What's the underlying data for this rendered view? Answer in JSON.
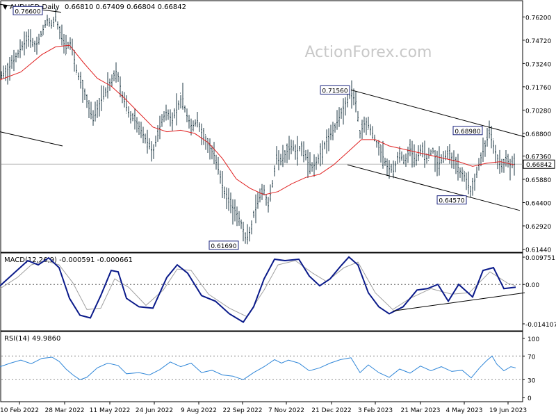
{
  "header": {
    "symbol": "AUDUSD,Daily",
    "ohlc": "0.66810 0.67409 0.66804 0.66842",
    "watermark": "ActionForex.com"
  },
  "chart_data": [
    {
      "type": "candlestick",
      "name": "AUDUSD,Daily",
      "y_ticks": [
        "0.76200",
        "0.74720",
        "0.73240",
        "0.71760",
        "0.70280",
        "0.68800",
        "0.67360",
        "0.65880",
        "0.64400",
        "0.62920",
        "0.61440"
      ],
      "ylim": [
        0.6133,
        0.771
      ],
      "last_price": "0.66842",
      "ma_color": "#e02020",
      "price_color": "#1f3a44",
      "trendline_color": "#000000",
      "price_path": [
        [
          0,
          0.724
        ],
        [
          10,
          0.728
        ],
        [
          22,
          0.736
        ],
        [
          30,
          0.742
        ],
        [
          40,
          0.748
        ],
        [
          52,
          0.744
        ],
        [
          60,
          0.752
        ],
        [
          68,
          0.76
        ],
        [
          75,
          0.756
        ],
        [
          80,
          0.762
        ],
        [
          88,
          0.749
        ],
        [
          95,
          0.742
        ],
        [
          102,
          0.746
        ],
        [
          110,
          0.728
        ],
        [
          118,
          0.718
        ],
        [
          128,
          0.704
        ],
        [
          134,
          0.696
        ],
        [
          142,
          0.706
        ],
        [
          152,
          0.714
        ],
        [
          160,
          0.722
        ],
        [
          168,
          0.728
        ],
        [
          176,
          0.712
        ],
        [
          184,
          0.702
        ],
        [
          190,
          0.698
        ],
        [
          198,
          0.694
        ],
        [
          205,
          0.688
        ],
        [
          212,
          0.682
        ],
        [
          220,
          0.676
        ],
        [
          226,
          0.685
        ],
        [
          232,
          0.696
        ],
        [
          240,
          0.702
        ],
        [
          248,
          0.696
        ],
        [
          255,
          0.704
        ],
        [
          262,
          0.712
        ],
        [
          268,
          0.7
        ],
        [
          276,
          0.692
        ],
        [
          284,
          0.696
        ],
        [
          292,
          0.686
        ],
        [
          300,
          0.68
        ],
        [
          308,
          0.674
        ],
        [
          316,
          0.662
        ],
        [
          324,
          0.648
        ],
        [
          332,
          0.642
        ],
        [
          340,
          0.638
        ],
        [
          348,
          0.63
        ],
        [
          354,
          0.62
        ],
        [
          360,
          0.626
        ],
        [
          366,
          0.638
        ],
        [
          372,
          0.646
        ],
        [
          380,
          0.652
        ],
        [
          386,
          0.642
        ],
        [
          392,
          0.656
        ],
        [
          398,
          0.672
        ],
        [
          404,
          0.67
        ],
        [
          412,
          0.676
        ],
        [
          420,
          0.68
        ],
        [
          426,
          0.676
        ],
        [
          434,
          0.68
        ],
        [
          442,
          0.67
        ],
        [
          450,
          0.666
        ],
        [
          458,
          0.672
        ],
        [
          466,
          0.68
        ],
        [
          474,
          0.686
        ],
        [
          482,
          0.692
        ],
        [
          490,
          0.7
        ],
        [
          498,
          0.708
        ],
        [
          505,
          0.714
        ],
        [
          512,
          0.708
        ],
        [
          518,
          0.688
        ],
        [
          526,
          0.696
        ],
        [
          534,
          0.69
        ],
        [
          542,
          0.682
        ],
        [
          550,
          0.674
        ],
        [
          558,
          0.666
        ],
        [
          566,
          0.664
        ],
        [
          574,
          0.676
        ],
        [
          582,
          0.67
        ],
        [
          590,
          0.678
        ],
        [
          598,
          0.67
        ],
        [
          606,
          0.678
        ],
        [
          614,
          0.672
        ],
        [
          622,
          0.678
        ],
        [
          630,
          0.668
        ],
        [
          638,
          0.672
        ],
        [
          646,
          0.676
        ],
        [
          654,
          0.67
        ],
        [
          662,
          0.664
        ],
        [
          670,
          0.66
        ],
        [
          678,
          0.65
        ],
        [
          684,
          0.66
        ],
        [
          690,
          0.67
        ],
        [
          698,
          0.68
        ],
        [
          704,
          0.688
        ],
        [
          710,
          0.68
        ],
        [
          716,
          0.672
        ],
        [
          722,
          0.666
        ],
        [
          728,
          0.672
        ],
        [
          734,
          0.668
        ],
        [
          740,
          0.6684
        ]
      ],
      "ma_path": [
        [
          0,
          0.722
        ],
        [
          30,
          0.727
        ],
        [
          60,
          0.738
        ],
        [
          80,
          0.743
        ],
        [
          100,
          0.744
        ],
        [
          120,
          0.733
        ],
        [
          140,
          0.723
        ],
        [
          160,
          0.718
        ],
        [
          180,
          0.71
        ],
        [
          200,
          0.701
        ],
        [
          220,
          0.692
        ],
        [
          240,
          0.689
        ],
        [
          260,
          0.69
        ],
        [
          280,
          0.688
        ],
        [
          300,
          0.682
        ],
        [
          320,
          0.672
        ],
        [
          340,
          0.659
        ],
        [
          360,
          0.653
        ],
        [
          380,
          0.649
        ],
        [
          400,
          0.651
        ],
        [
          420,
          0.656
        ],
        [
          440,
          0.66
        ],
        [
          460,
          0.662
        ],
        [
          480,
          0.668
        ],
        [
          500,
          0.676
        ],
        [
          520,
          0.684
        ],
        [
          540,
          0.684
        ],
        [
          560,
          0.68
        ],
        [
          580,
          0.678
        ],
        [
          600,
          0.676
        ],
        [
          620,
          0.674
        ],
        [
          640,
          0.672
        ],
        [
          660,
          0.67
        ],
        [
          680,
          0.667
        ],
        [
          700,
          0.669
        ],
        [
          720,
          0.67
        ],
        [
          740,
          0.668
        ]
      ],
      "trendlines": [
        [
          [
            0,
            0.77
          ],
          [
            88,
            0.765
          ]
        ],
        [
          [
            0,
            0.689
          ],
          [
            90,
            0.68
          ]
        ],
        [
          [
            505,
            0.7156
          ],
          [
            755,
            0.6858
          ]
        ],
        [
          [
            500,
            0.668
          ],
          [
            748,
            0.639
          ]
        ]
      ],
      "annotations": [
        {
          "text": "0.76600",
          "x": 40,
          "price": 0.766
        },
        {
          "text": "0.71560",
          "x": 482,
          "price": 0.7156
        },
        {
          "text": "0.68980",
          "x": 673,
          "price": 0.6898
        },
        {
          "text": "0.64570",
          "x": 650,
          "price": 0.6457
        },
        {
          "text": "0.61690",
          "x": 322,
          "price": 0.6169
        }
      ]
    },
    {
      "type": "line",
      "name": "MACD(12,26,9)",
      "label": "MACD(12,26,9) -0.000591 -0.000661",
      "y_ticks": [
        "0.009751",
        "0.00",
        "-0.014107"
      ],
      "ylim": [
        -0.0161,
        0.0105
      ],
      "macd_color": "#0a1a8a",
      "signal_color": "#a0a0a0",
      "zero_color": "#606060",
      "trendline_color": "#000000",
      "macd_path": [
        [
          0,
          -0.0005
        ],
        [
          20,
          0.004
        ],
        [
          40,
          0.0085
        ],
        [
          55,
          0.007
        ],
        [
          70,
          0.0095
        ],
        [
          85,
          0.006
        ],
        [
          100,
          -0.005
        ],
        [
          115,
          -0.011
        ],
        [
          130,
          -0.012
        ],
        [
          145,
          -0.004
        ],
        [
          160,
          0.005
        ],
        [
          170,
          0.0045
        ],
        [
          182,
          -0.005
        ],
        [
          200,
          -0.008
        ],
        [
          220,
          -0.0085
        ],
        [
          240,
          0.0025
        ],
        [
          255,
          0.007
        ],
        [
          270,
          0.004
        ],
        [
          290,
          -0.004
        ],
        [
          310,
          -0.006
        ],
        [
          330,
          -0.0105
        ],
        [
          350,
          -0.0135
        ],
        [
          365,
          -0.008
        ],
        [
          380,
          0.002
        ],
        [
          395,
          0.009
        ],
        [
          410,
          0.0085
        ],
        [
          430,
          0.009
        ],
        [
          445,
          0.003
        ],
        [
          460,
          -0.0005
        ],
        [
          475,
          0.002
        ],
        [
          490,
          0.0065
        ],
        [
          502,
          0.0098
        ],
        [
          515,
          0.007
        ],
        [
          530,
          -0.003
        ],
        [
          545,
          -0.008
        ],
        [
          560,
          -0.0105
        ],
        [
          580,
          -0.008
        ],
        [
          600,
          -0.002
        ],
        [
          615,
          -0.0015
        ],
        [
          630,
          0.0
        ],
        [
          645,
          -0.006
        ],
        [
          660,
          0.0
        ],
        [
          680,
          -0.0045
        ],
        [
          695,
          0.005
        ],
        [
          710,
          0.006
        ],
        [
          725,
          -0.0015
        ],
        [
          742,
          -0.001
        ]
      ],
      "signal_path": [
        [
          0,
          -0.0015
        ],
        [
          25,
          0.0025
        ],
        [
          45,
          0.007
        ],
        [
          65,
          0.0085
        ],
        [
          85,
          0.007
        ],
        [
          105,
          0.0005
        ],
        [
          125,
          -0.009
        ],
        [
          145,
          -0.0085
        ],
        [
          165,
          0.002
        ],
        [
          185,
          -0.001
        ],
        [
          210,
          -0.0075
        ],
        [
          235,
          -0.002
        ],
        [
          255,
          0.0055
        ],
        [
          275,
          0.005
        ],
        [
          300,
          -0.0035
        ],
        [
          330,
          -0.0085
        ],
        [
          355,
          -0.0115
        ],
        [
          380,
          -0.002
        ],
        [
          400,
          0.007
        ],
        [
          425,
          0.0085
        ],
        [
          450,
          0.004
        ],
        [
          470,
          0.001
        ],
        [
          495,
          0.006
        ],
        [
          515,
          0.008
        ],
        [
          540,
          -0.003
        ],
        [
          565,
          -0.009
        ],
        [
          590,
          -0.005
        ],
        [
          620,
          -0.0015
        ],
        [
          650,
          -0.0035
        ],
        [
          675,
          -0.003
        ],
        [
          705,
          0.0045
        ],
        [
          730,
          0.0005
        ],
        [
          742,
          -0.0005
        ]
      ],
      "trendlines": [
        [
          [
            565,
            -0.0095
          ],
          [
            755,
            -0.003
          ]
        ]
      ]
    },
    {
      "type": "line",
      "name": "RSI(14)",
      "label": "RSI(14) 49.9860",
      "y_ticks": [
        "100",
        "70",
        "30",
        "0"
      ],
      "ylim": [
        -5,
        108
      ],
      "rsi_color": "#2f86d8",
      "level_color": "#909090",
      "rsi_path": [
        [
          0,
          52
        ],
        [
          15,
          58
        ],
        [
          30,
          63
        ],
        [
          45,
          57
        ],
        [
          60,
          66
        ],
        [
          75,
          68
        ],
        [
          85,
          61
        ],
        [
          95,
          48
        ],
        [
          105,
          38
        ],
        [
          115,
          30
        ],
        [
          125,
          34
        ],
        [
          140,
          50
        ],
        [
          155,
          58
        ],
        [
          170,
          54
        ],
        [
          182,
          40
        ],
        [
          200,
          42
        ],
        [
          215,
          38
        ],
        [
          230,
          47
        ],
        [
          245,
          60
        ],
        [
          260,
          52
        ],
        [
          275,
          58
        ],
        [
          290,
          42
        ],
        [
          305,
          46
        ],
        [
          320,
          38
        ],
        [
          335,
          36
        ],
        [
          350,
          30
        ],
        [
          365,
          42
        ],
        [
          380,
          52
        ],
        [
          395,
          64
        ],
        [
          405,
          58
        ],
        [
          415,
          63
        ],
        [
          430,
          58
        ],
        [
          445,
          45
        ],
        [
          460,
          50
        ],
        [
          475,
          58
        ],
        [
          490,
          64
        ],
        [
          505,
          67
        ],
        [
          518,
          42
        ],
        [
          530,
          55
        ],
        [
          545,
          42
        ],
        [
          560,
          34
        ],
        [
          575,
          48
        ],
        [
          590,
          41
        ],
        [
          605,
          53
        ],
        [
          620,
          45
        ],
        [
          635,
          52
        ],
        [
          650,
          44
        ],
        [
          665,
          46
        ],
        [
          678,
          33
        ],
        [
          690,
          50
        ],
        [
          700,
          62
        ],
        [
          708,
          70
        ],
        [
          715,
          56
        ],
        [
          725,
          45
        ],
        [
          735,
          52
        ],
        [
          742,
          50
        ]
      ]
    }
  ],
  "x_axis": {
    "ticks": [
      {
        "label": "10 Feb 2022",
        "x": 28
      },
      {
        "label": "28 Mar 2022",
        "x": 93
      },
      {
        "label": "11 May 2022",
        "x": 158
      },
      {
        "label": "24 Jun 2022",
        "x": 222
      },
      {
        "label": "9 Aug 2022",
        "x": 286
      },
      {
        "label": "22 Sep 2022",
        "x": 349
      },
      {
        "label": "7 Nov 2022",
        "x": 412
      },
      {
        "label": "21 Dec 2022",
        "x": 477
      },
      {
        "label": "3 Feb 2023",
        "x": 540
      },
      {
        "label": "21 Mar 2023",
        "x": 605
      },
      {
        "label": "4 May 2023",
        "x": 668
      },
      {
        "label": "19 Jun 2023",
        "x": 731
      }
    ]
  }
}
